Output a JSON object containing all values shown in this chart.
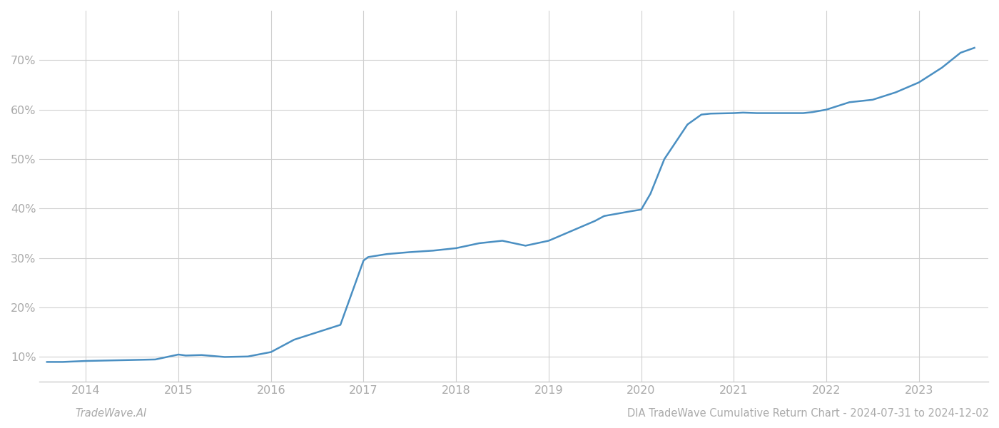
{
  "footer_left": "TradeWave.AI",
  "footer_right": "DIA TradeWave Cumulative Return Chart - 2024-07-31 to 2024-12-02",
  "line_color": "#4a8fc2",
  "background_color": "#ffffff",
  "grid_color": "#d0d0d0",
  "x_years": [
    2013.58,
    2013.75,
    2014.0,
    2014.25,
    2014.5,
    2014.75,
    2015.0,
    2015.08,
    2015.25,
    2015.5,
    2015.75,
    2016.0,
    2016.1,
    2016.25,
    2016.5,
    2016.75,
    2017.0,
    2017.05,
    2017.25,
    2017.5,
    2017.75,
    2018.0,
    2018.25,
    2018.5,
    2018.75,
    2019.0,
    2019.25,
    2019.5,
    2019.6,
    2019.75,
    2019.9,
    2020.0,
    2020.1,
    2020.25,
    2020.5,
    2020.65,
    2020.75,
    2021.0,
    2021.1,
    2021.25,
    2021.5,
    2021.75,
    2021.85,
    2022.0,
    2022.25,
    2022.5,
    2022.75,
    2023.0,
    2023.25,
    2023.45,
    2023.6
  ],
  "y_values": [
    9.0,
    9.0,
    9.2,
    9.3,
    9.4,
    9.5,
    10.5,
    10.3,
    10.4,
    10.0,
    10.1,
    11.0,
    12.0,
    13.5,
    15.0,
    16.5,
    29.5,
    30.2,
    30.8,
    31.2,
    31.5,
    32.0,
    33.0,
    33.5,
    32.5,
    33.5,
    35.5,
    37.5,
    38.5,
    39.0,
    39.5,
    39.8,
    43.0,
    50.0,
    57.0,
    59.0,
    59.2,
    59.3,
    59.4,
    59.3,
    59.3,
    59.3,
    59.5,
    60.0,
    61.5,
    62.0,
    63.5,
    65.5,
    68.5,
    71.5,
    72.5
  ],
  "xtick_years": [
    2014,
    2015,
    2016,
    2017,
    2018,
    2019,
    2020,
    2021,
    2022,
    2023
  ],
  "ytick_values": [
    10,
    20,
    30,
    40,
    50,
    60,
    70
  ],
  "ytick_labels": [
    "10%",
    "20%",
    "30%",
    "40%",
    "50%",
    "60%",
    "70%"
  ],
  "xlim": [
    2013.5,
    2023.75
  ],
  "ylim": [
    5,
    80
  ],
  "line_width": 1.8,
  "footer_fontsize": 10.5,
  "tick_fontsize": 11.5,
  "tick_color": "#aaaaaa",
  "spine_color": "#cccccc"
}
